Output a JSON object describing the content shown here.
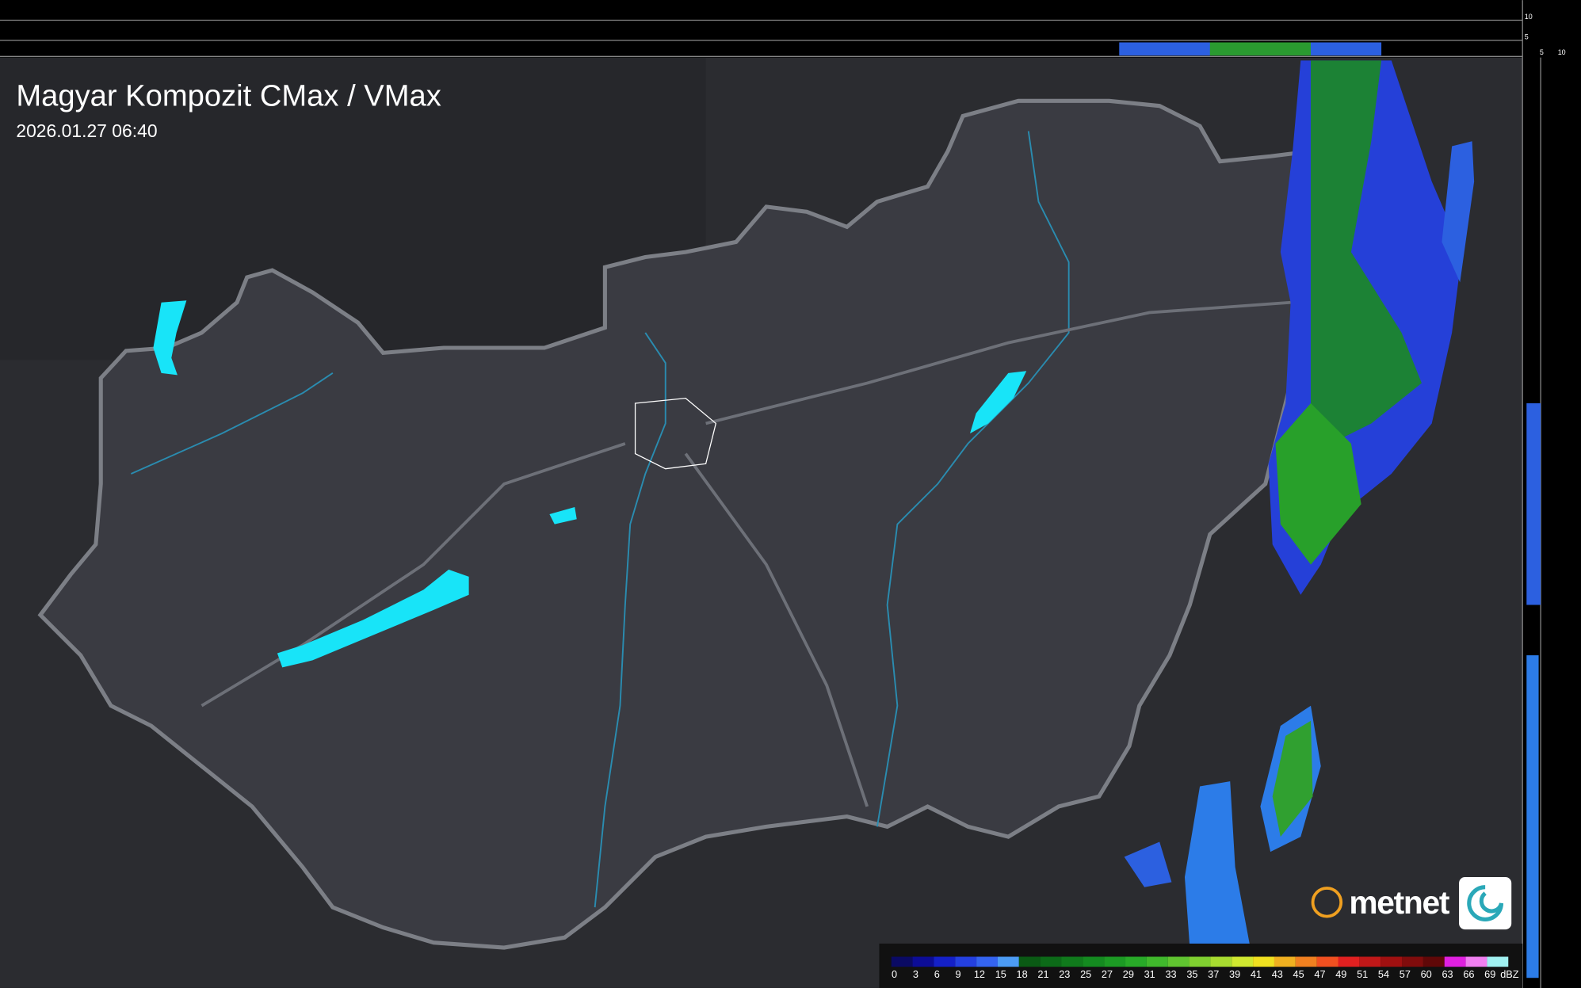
{
  "header": {
    "title": "Magyar Kompozit CMax / VMax",
    "timestamp": "2026.01.27 06:40"
  },
  "profile_axis": {
    "top_ticks": [
      10,
      5
    ],
    "side_ticks": [
      5,
      10
    ]
  },
  "brand": {
    "name": "metnet"
  },
  "legend": {
    "unit": "dBZ",
    "labels": [
      0,
      3,
      6,
      9,
      12,
      15,
      18,
      21,
      23,
      25,
      27,
      29,
      31,
      33,
      35,
      37,
      39,
      41,
      43,
      45,
      47,
      49,
      51,
      54,
      57,
      60,
      63,
      66,
      69
    ],
    "colors": [
      "#0a0a64",
      "#0c0c96",
      "#1420c8",
      "#2440e0",
      "#3464f0",
      "#4c9cf4",
      "#0a5a14",
      "#0c6a18",
      "#107a1c",
      "#148a20",
      "#1c9a24",
      "#28aa28",
      "#40b82c",
      "#60c430",
      "#80d030",
      "#a8dc30",
      "#d0e830",
      "#f0e020",
      "#f0b020",
      "#f08020",
      "#f05020",
      "#e02020",
      "#c01818",
      "#a01010",
      "#800c0c",
      "#600808",
      "#e020e0",
      "#f080f0",
      "#a0f0f0"
    ]
  }
}
